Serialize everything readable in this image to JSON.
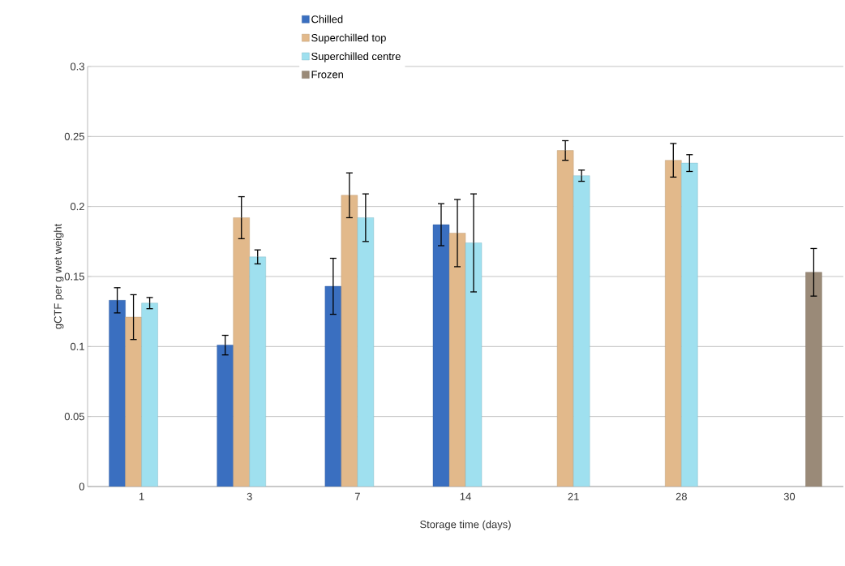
{
  "chart_data": {
    "type": "bar",
    "xlabel": "Storage time (days)",
    "ylabel": "gCTF per g wet weight",
    "categories": [
      "1",
      "3",
      "7",
      "14",
      "21",
      "28",
      "30"
    ],
    "series": [
      {
        "name": "Chilled",
        "color": "#3a6fc0",
        "values": [
          0.133,
          0.101,
          0.143,
          0.187,
          null,
          null,
          null
        ],
        "errors": [
          0.009,
          0.007,
          0.02,
          0.015,
          null,
          null,
          null
        ]
      },
      {
        "name": "Superchilled top",
        "color": "#e2b98b",
        "values": [
          0.121,
          0.192,
          0.208,
          0.181,
          0.24,
          0.233,
          null
        ],
        "errors": [
          0.016,
          0.015,
          0.016,
          0.024,
          0.007,
          0.012,
          null
        ]
      },
      {
        "name": "Superchilled centre",
        "color": "#9fe0ef",
        "values": [
          0.131,
          0.164,
          0.192,
          0.174,
          0.222,
          0.231,
          null
        ],
        "errors": [
          0.004,
          0.005,
          0.017,
          0.035,
          0.004,
          0.006,
          null
        ]
      },
      {
        "name": "Frozen",
        "color": "#9a8a78",
        "values": [
          null,
          null,
          null,
          null,
          null,
          null,
          0.153
        ],
        "errors": [
          null,
          null,
          null,
          null,
          null,
          null,
          0.017
        ]
      }
    ],
    "ylim": [
      0,
      0.3
    ],
    "yticks": [
      {
        "value": 0,
        "label": "0"
      },
      {
        "value": 0.05,
        "label": "0.05"
      },
      {
        "value": 0.1,
        "label": "0.1"
      },
      {
        "value": 0.15,
        "label": "0.15"
      },
      {
        "value": 0.2,
        "label": "0.2"
      },
      {
        "value": 0.25,
        "label": "0.25"
      },
      {
        "value": 0.3,
        "label": "0.3"
      }
    ],
    "grid": "y",
    "legend": "top"
  }
}
